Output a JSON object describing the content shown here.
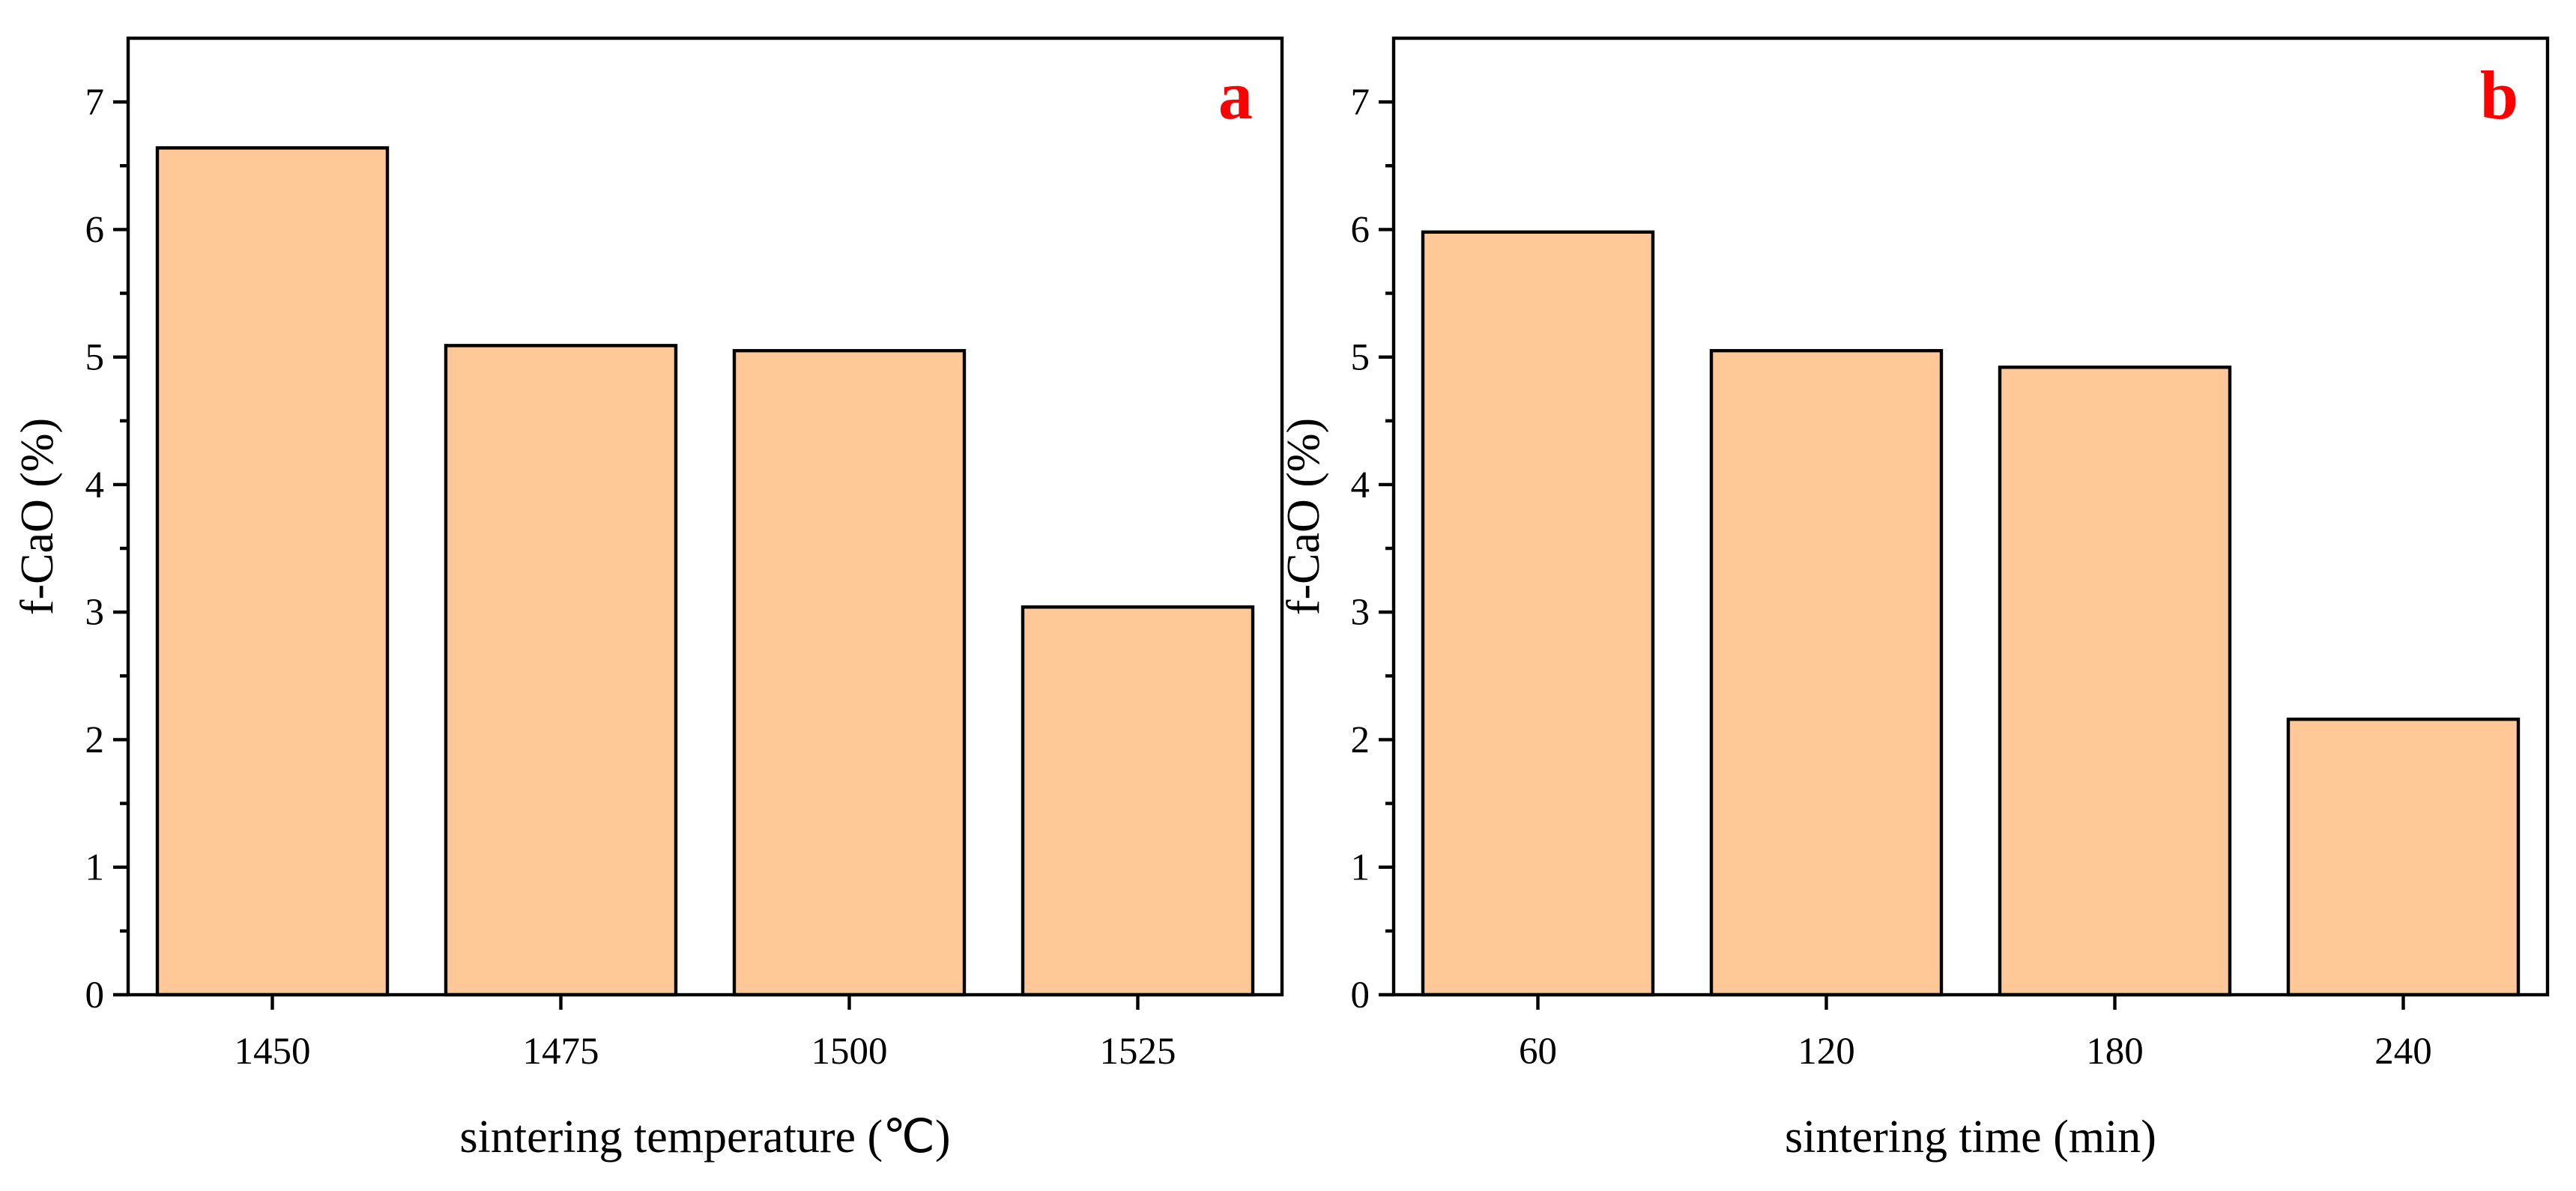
{
  "chart_data": [
    {
      "type": "bar",
      "panel_label": "a",
      "categories": [
        "1450",
        "1475",
        "1500",
        "1525"
      ],
      "values": [
        6.64,
        5.09,
        5.05,
        3.04
      ],
      "xlabel": "sintering temperature (℃)",
      "ylabel": "f-CaO (%)",
      "ylim": [
        0,
        7.5
      ],
      "yticks": [
        "0",
        "1",
        "2",
        "3",
        "4",
        "5",
        "6",
        "7"
      ],
      "grid": false,
      "legend": "none",
      "bar_color": "#FFC896",
      "label_color": "#FF0000"
    },
    {
      "type": "bar",
      "panel_label": "b",
      "categories": [
        "60",
        "120",
        "180",
        "240"
      ],
      "values": [
        5.98,
        5.05,
        4.92,
        2.16
      ],
      "xlabel": "sintering time (min)",
      "ylabel": "f-CaO (%)",
      "ylim": [
        0,
        7.5
      ],
      "yticks": [
        "0",
        "1",
        "2",
        "3",
        "4",
        "5",
        "6",
        "7"
      ],
      "grid": false,
      "legend": "none",
      "bar_color": "#FFC896",
      "label_color": "#FF0000"
    }
  ]
}
